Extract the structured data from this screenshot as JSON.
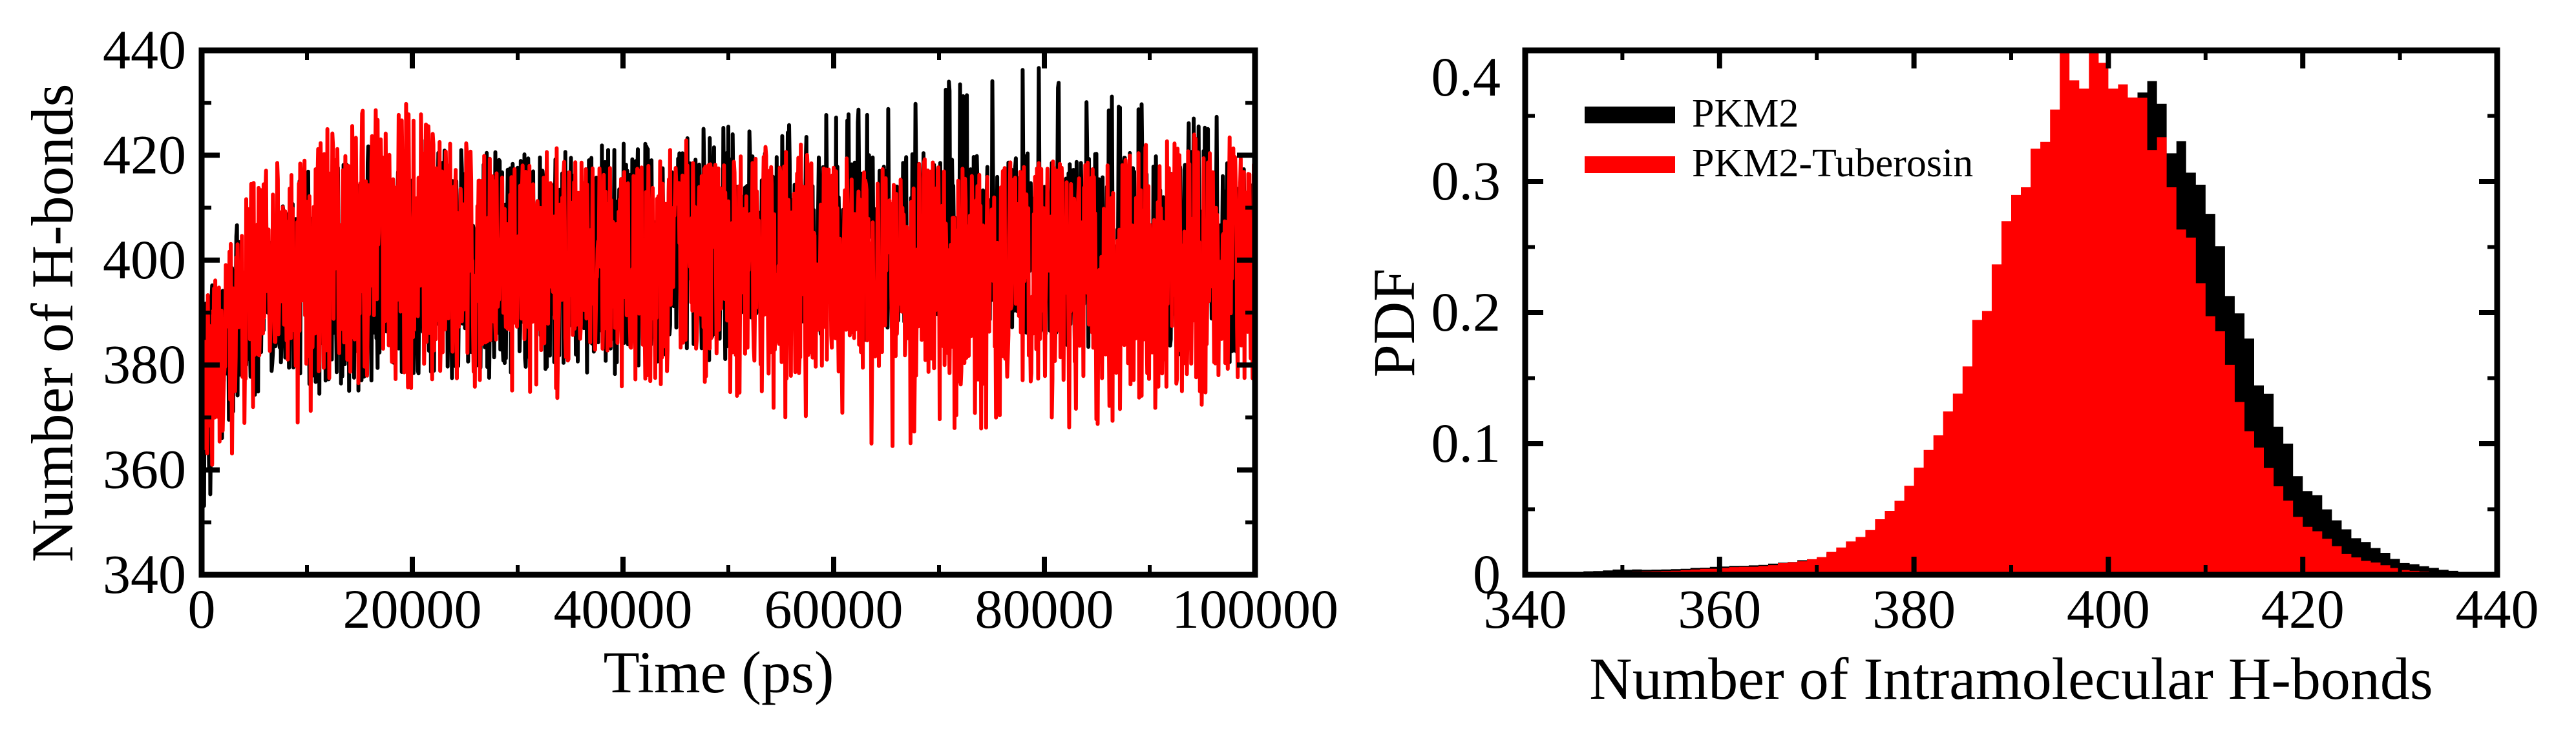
{
  "chart_data": [
    {
      "type": "line",
      "xlabel": "Time (ps)",
      "ylabel": "Number of H-bonds",
      "xlim": [
        0,
        100000
      ],
      "ylim": [
        340,
        440
      ],
      "xticks": [
        0,
        20000,
        40000,
        60000,
        80000,
        100000
      ],
      "yticks": [
        340,
        360,
        380,
        400,
        420,
        440
      ],
      "xtick_labels": [
        "0",
        "20000",
        "40000",
        "60000",
        "80000",
        "100000"
      ],
      "ytick_labels": [
        "340",
        "360",
        "380",
        "400",
        "420",
        "440"
      ],
      "grid": false,
      "legend": "none",
      "x": [
        0,
        5000,
        10000,
        15000,
        20000,
        25000,
        30000,
        35000,
        40000,
        45000,
        50000,
        55000,
        60000,
        65000,
        70000,
        75000,
        80000,
        85000,
        90000,
        95000,
        100000
      ],
      "series": [
        {
          "color": "#000000",
          "mean": [
            370,
            396,
            396,
            398,
            399,
            399,
            399,
            400,
            401,
            402,
            402,
            403,
            403,
            404,
            404,
            404,
            403,
            403,
            402,
            402,
            401
          ],
          "low": [
            341,
            372,
            370,
            374,
            376,
            377,
            378,
            376,
            378,
            380,
            381,
            383,
            384,
            385,
            386,
            386,
            383,
            382,
            382,
            381,
            379
          ],
          "high": [
            392,
            414,
            418,
            422,
            424,
            422,
            420,
            422,
            424,
            424,
            426,
            426,
            428,
            430,
            434,
            436,
            438,
            432,
            430,
            428,
            436
          ]
        },
        {
          "color": "#ff0000",
          "mean": [
            372,
            398,
            399,
            402,
            403,
            402,
            401,
            400,
            400,
            401,
            400,
            399,
            398,
            398,
            397,
            397,
            397,
            397,
            398,
            398,
            398
          ],
          "low": [
            350,
            372,
            368,
            372,
            374,
            376,
            372,
            373,
            374,
            375,
            374,
            370,
            368,
            362,
            366,
            368,
            368,
            368,
            371,
            372,
            374
          ],
          "high": [
            393,
            416,
            422,
            434,
            430,
            424,
            420,
            422,
            418,
            424,
            420,
            424,
            420,
            418,
            420,
            421,
            420,
            421,
            424,
            424,
            426
          ]
        }
      ]
    },
    {
      "type": "bar",
      "xlabel": "Number of Intramolecular H-bonds",
      "ylabel": "PDF",
      "xlim": [
        340,
        440
      ],
      "ylim": [
        0,
        0.4
      ],
      "xticks": [
        340,
        360,
        380,
        400,
        420,
        440
      ],
      "yticks": [
        0,
        0.1,
        0.2,
        0.3,
        0.4
      ],
      "xtick_labels": [
        "340",
        "360",
        "380",
        "400",
        "420",
        "440"
      ],
      "ytick_labels": [
        "0",
        "0.1",
        "0.2",
        "0.3",
        "0.4"
      ],
      "grid": false,
      "legend": "top-left",
      "categories": [
        345,
        350,
        355,
        360,
        365,
        370,
        375,
        380,
        385,
        390,
        395,
        400,
        405,
        410,
        415,
        420,
        425,
        430,
        435
      ],
      "series": [
        {
          "name": "PKM2",
          "color": "#000000",
          "values": [
            0.002,
            0.004,
            0.004,
            0.006,
            0.008,
            0.012,
            0.025,
            0.055,
            0.11,
            0.2,
            0.33,
            0.36,
            0.36,
            0.28,
            0.16,
            0.07,
            0.03,
            0.01,
            0.003
          ]
        },
        {
          "name": "PKM2-Tuberosin",
          "color": "#ff0000",
          "values": [
            0.001,
            0.002,
            0.003,
            0.005,
            0.007,
            0.012,
            0.03,
            0.07,
            0.15,
            0.27,
            0.38,
            0.39,
            0.33,
            0.21,
            0.1,
            0.04,
            0.014,
            0.004,
            0.001
          ]
        }
      ]
    }
  ]
}
